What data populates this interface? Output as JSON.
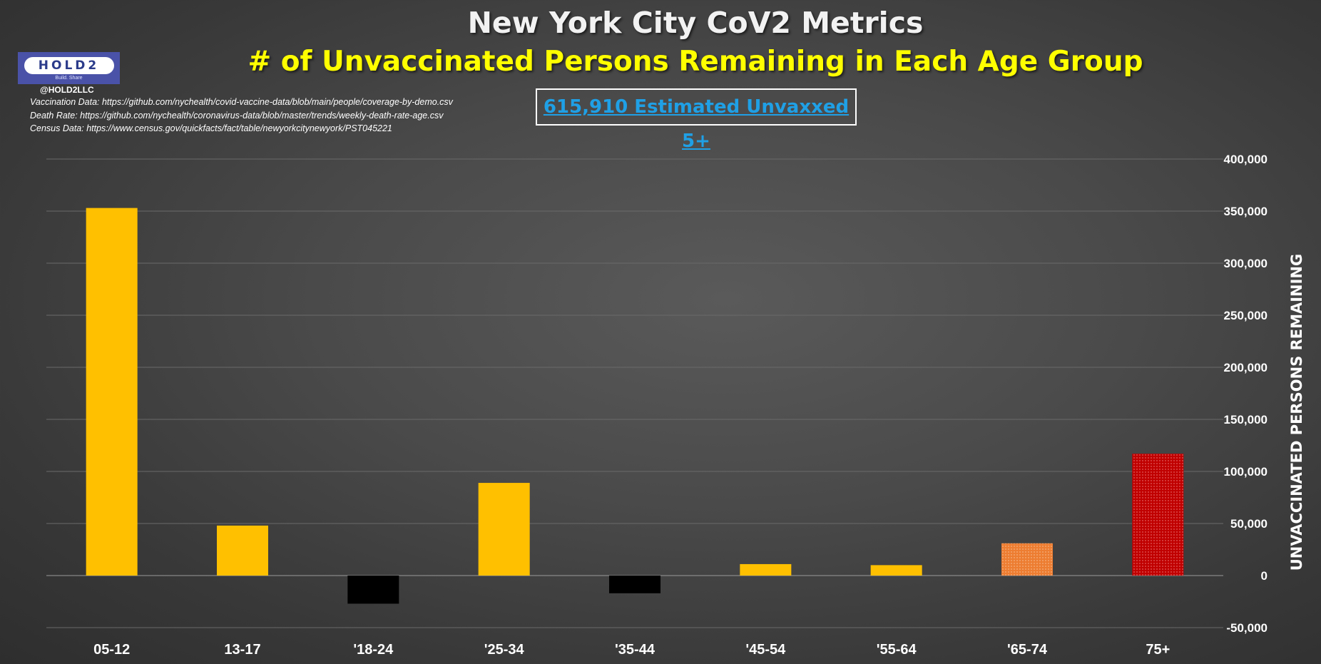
{
  "chart_data": {
    "type": "bar",
    "title": "New York City CoV2 Metrics",
    "subtitle": "# of Unvaccinated Persons Remaining in Each Age Group",
    "ylabel": "UNVACCINATED PERSONS REMAINING",
    "xlabel": "",
    "categories": [
      "05-12",
      "13-17",
      "'18-24",
      "'25-34",
      "'35-44",
      "'45-54",
      "'55-64",
      "'65-74",
      "75+"
    ],
    "values": [
      353000,
      48000,
      -27000,
      89000,
      -17000,
      11000,
      10000,
      31000,
      117000
    ],
    "bar_colors": [
      "#ffc000",
      "#ffc000",
      "#000000",
      "#ffc000",
      "#000000",
      "#ffc000",
      "#ffc000",
      "#ed7d31",
      "#c00000"
    ],
    "ylim": [
      -50000,
      400000
    ],
    "yticks": [
      -50000,
      0,
      50000,
      100000,
      150000,
      200000,
      250000,
      300000,
      350000,
      400000
    ],
    "ytick_labels": [
      "-50,000",
      "0",
      "50,000",
      "100,000",
      "150,000",
      "200,000",
      "250,000",
      "300,000",
      "350,000",
      "400,000"
    ],
    "y_axis_side": "right",
    "grid": true,
    "legend": "none"
  },
  "logo": {
    "text": "HOLD2",
    "tagline": "Build. Share"
  },
  "handle": "@HOLD2LLC",
  "sources": [
    "Vaccination Data: https://github.com/nychealth/covid-vaccine-data/blob/main/people/coverage-by-demo.csv",
    "Death Rate: https://github.com/nychealth/coronavirus-data/blob/master/trends/weekly-death-rate-age.csv",
    "Census Data: https://www.census.gov/quickfacts/fact/table/newyorkcitynewyork/PST045221"
  ],
  "callout": "615,910 Estimated Unvaxxed 5+",
  "colors": {
    "accent_title": "#ffff00",
    "callout_text": "#1fa0e6",
    "grid": "#6a6a6a"
  }
}
